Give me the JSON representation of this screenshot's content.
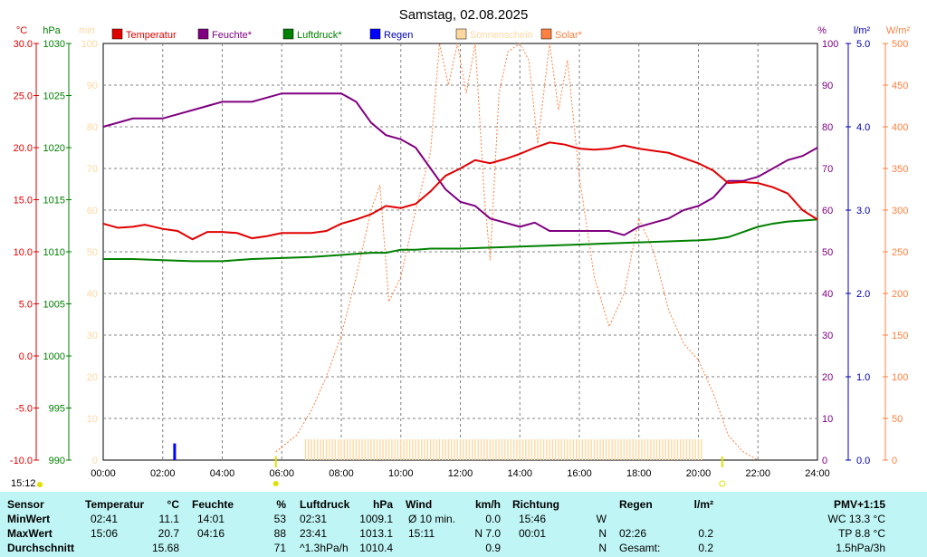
{
  "title": "Samstag, 02.08.2025",
  "time_now": "15:12",
  "legend": [
    {
      "label": "Temperatur",
      "color": "#e00000"
    },
    {
      "label": "Feuchte*",
      "color": "#800080"
    },
    {
      "label": "Luftdruck*",
      "color": "#008000"
    },
    {
      "label": "Regen",
      "color": "#0000ff"
    },
    {
      "label": "Sonnenschein",
      "color": "#ffd8a0"
    },
    {
      "label": "Solar*",
      "color": "#ff8040"
    }
  ],
  "axes_units": {
    "temp": "°C",
    "pressure": "hPa",
    "sun": "min",
    "humidity": "%",
    "rain": "l/m²",
    "solar": "W/m²"
  },
  "ticks": {
    "temp": [
      "30.0",
      "25.0",
      "20.0",
      "15.0",
      "10.0",
      "5.0",
      "0.0",
      "-5.0",
      "-10.0"
    ],
    "pressure": [
      "1030",
      "1025",
      "1020",
      "1015",
      "1010",
      "1005",
      "1000",
      "995",
      "990"
    ],
    "sun": [
      "100",
      "90",
      "80",
      "70",
      "60",
      "50",
      "40",
      "30",
      "20",
      "10",
      "0"
    ],
    "humidity": [
      "100",
      "90",
      "80",
      "70",
      "60",
      "50",
      "40",
      "30",
      "20",
      "10",
      "0"
    ],
    "rain": [
      "5.0",
      "4.0",
      "3.0",
      "2.0",
      "1.0",
      "0.0"
    ],
    "solar": [
      "500",
      "450",
      "400",
      "350",
      "300",
      "250",
      "200",
      "150",
      "100",
      "50",
      "0"
    ],
    "x": [
      "00:00",
      "02:00",
      "04:00",
      "06:00",
      "08:00",
      "10:00",
      "12:00",
      "14:00",
      "16:00",
      "18:00",
      "20:00",
      "22:00",
      "24:00"
    ]
  },
  "chart_data": {
    "type": "line",
    "title": "Samstag, 02.08.2025",
    "x_unit": "hours",
    "xlim": [
      0,
      24
    ],
    "series": [
      {
        "name": "Temperatur",
        "axis": "temp",
        "ylim": [
          -10,
          30
        ],
        "color": "#e00000",
        "x": [
          0,
          0.5,
          1,
          1.4,
          2,
          2.5,
          3,
          3.5,
          4,
          4.5,
          5,
          5.5,
          6,
          6.5,
          7,
          7.5,
          8,
          8.5,
          9,
          9.5,
          10,
          10.5,
          11,
          11.5,
          12,
          12.5,
          13,
          13.5,
          14,
          14.5,
          15,
          15.5,
          16,
          16.5,
          17,
          17.5,
          18,
          18.5,
          19,
          19.5,
          20,
          20.5,
          21,
          21.5,
          22,
          22.5,
          23,
          23.5,
          24
        ],
        "y": [
          12.7,
          12.3,
          12.4,
          12.6,
          12.2,
          12.0,
          11.2,
          11.9,
          11.9,
          11.8,
          11.3,
          11.5,
          11.8,
          11.8,
          11.8,
          12.0,
          12.7,
          13.1,
          13.6,
          14.4,
          14.2,
          14.6,
          15.8,
          17.3,
          18.0,
          18.8,
          18.5,
          18.9,
          19.4,
          20.0,
          20.5,
          20.3,
          19.9,
          19.8,
          19.9,
          20.2,
          19.9,
          19.7,
          19.5,
          19.0,
          18.5,
          17.8,
          16.6,
          16.7,
          16.6,
          16.2,
          15.6,
          14.0,
          13.1
        ]
      },
      {
        "name": "Feuchte*",
        "axis": "humidity",
        "ylim": [
          0,
          100
        ],
        "color": "#800080",
        "x": [
          0,
          0.5,
          1,
          1.5,
          2,
          2.5,
          3,
          3.5,
          4,
          4.5,
          5,
          5.5,
          6,
          6.5,
          7,
          7.5,
          8,
          8.5,
          9,
          9.5,
          10,
          10.5,
          11,
          11.5,
          12,
          12.5,
          13,
          13.5,
          14,
          14.5,
          15,
          15.5,
          16,
          16.5,
          17,
          17.5,
          18,
          18.5,
          19,
          19.5,
          20,
          20.5,
          21,
          21.5,
          22,
          22.5,
          23,
          23.5,
          24
        ],
        "y": [
          80,
          81,
          82,
          82,
          82,
          83,
          84,
          85,
          86,
          86,
          86,
          87,
          88,
          88,
          88,
          88,
          88,
          86,
          81,
          78,
          77,
          75,
          70,
          65,
          62,
          61,
          58,
          57,
          56,
          57,
          55,
          55,
          55,
          55,
          55,
          54,
          56,
          57,
          58,
          60,
          61,
          63,
          67,
          67,
          68,
          70,
          72,
          73,
          75
        ]
      },
      {
        "name": "Luftdruck*",
        "axis": "pressure",
        "ylim": [
          990,
          1030
        ],
        "color": "#008000",
        "x": [
          0,
          1,
          2,
          3,
          4,
          5,
          6,
          7,
          8,
          9,
          9.5,
          10,
          10.5,
          11,
          12,
          13,
          14,
          15,
          16,
          17,
          18,
          19,
          20,
          20.5,
          21,
          21.5,
          22,
          22.5,
          23,
          23.5,
          24
        ],
        "y": [
          1009.3,
          1009.3,
          1009.2,
          1009.1,
          1009.1,
          1009.3,
          1009.4,
          1009.5,
          1009.7,
          1009.9,
          1009.9,
          1010.2,
          1010.2,
          1010.3,
          1010.3,
          1010.4,
          1010.5,
          1010.6,
          1010.7,
          1010.8,
          1010.9,
          1011.0,
          1011.1,
          1011.2,
          1011.4,
          1011.9,
          1012.4,
          1012.7,
          1012.9,
          1013.0,
          1013.1
        ]
      },
      {
        "name": "Solar*",
        "axis": "solar",
        "ylim": [
          0,
          500
        ],
        "color": "#ff8040",
        "style": "dotted",
        "x": [
          5.8,
          6.5,
          7,
          7.5,
          8,
          8.5,
          9,
          9.3,
          9.6,
          10,
          10.5,
          11,
          11.3,
          11.6,
          11.9,
          12.2,
          12.5,
          12.8,
          13,
          13.3,
          13.6,
          14,
          14.3,
          14.6,
          15,
          15.3,
          15.6,
          16,
          16.5,
          17,
          17.5,
          18,
          18.5,
          19,
          19.5,
          20,
          20.5,
          21,
          21.5,
          22
        ],
        "y": [
          10,
          30,
          60,
          100,
          150,
          220,
          300,
          330,
          190,
          220,
          300,
          370,
          500,
          450,
          500,
          440,
          500,
          320,
          240,
          440,
          490,
          520,
          480,
          380,
          520,
          420,
          480,
          340,
          220,
          160,
          200,
          290,
          250,
          180,
          140,
          120,
          80,
          30,
          10,
          0
        ]
      },
      {
        "name": "Sonnenschein",
        "axis": "sun",
        "ylim": [
          0,
          100
        ],
        "color": "#ffd8a0",
        "x": [
          6.8,
          20.2
        ],
        "y": [
          5,
          5
        ]
      },
      {
        "name": "Regen",
        "axis": "rain",
        "ylim": [
          0,
          5
        ],
        "color": "#0000ff",
        "x": [
          2.4
        ],
        "y": [
          0.2
        ]
      }
    ]
  },
  "stats": {
    "headers": [
      "Sensor",
      "Temperatur",
      "°C",
      "Feuchte",
      "%",
      "Luftdruck",
      "hPa",
      "Wind",
      "km/h",
      "Richtung",
      "Regen",
      "l/m²",
      "PMV+1:15"
    ],
    "rows": [
      {
        "label": "MinWert",
        "t_time": "02:41",
        "t_val": "11.1",
        "h_time": "14:01",
        "h_val": "53",
        "p_time": "02:31",
        "p_val": "1009.1",
        "w_label": "Ø 10 min.",
        "w_val": "0.0",
        "d_time": "15:46",
        "d_val": "W",
        "r_time": "",
        "r_val": "",
        "pmv": "WC 13.3 °C"
      },
      {
        "label": "MaxWert",
        "t_time": "15:06",
        "t_val": "20.7",
        "h_time": "04:16",
        "h_val": "88",
        "p_time": "23:41",
        "p_val": "1013.1",
        "w_label": "15:11",
        "w_val": "N 7.0",
        "d_time": "00:01",
        "d_val": "N",
        "r_time": "02:26",
        "r_val": "0.2",
        "pmv": "TP 8.8 °C"
      },
      {
        "label": "Durchschnitt",
        "t_time": "",
        "t_val": "15.68",
        "h_time": "",
        "h_val": "71",
        "p_time": "^1.3hPa/h",
        "p_val": "1010.4",
        "w_label": "",
        "w_val": "0.9",
        "d_time": "",
        "d_val": "N",
        "r_time": "Gesamt:",
        "r_val": "0.2",
        "pmv": "1.5hPa/3h"
      }
    ]
  }
}
